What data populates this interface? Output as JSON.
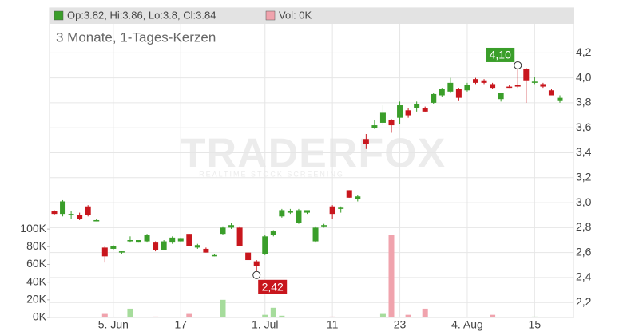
{
  "chart_data": {
    "type": "candlestick",
    "title": "3 Monate, 1-Tages-Kerzen",
    "legend_price": "Op:3.82, Hi:3.86, Lo:3.8, Cl:3.84",
    "legend_volume": "Vol: 0K",
    "watermark": "TRADERFOX",
    "watermark_sub": "REALTIME STOCK SCREENING",
    "categories": [
      null,
      null,
      null,
      null,
      null,
      null,
      null,
      "5. Jun",
      null,
      null,
      null,
      null,
      null,
      null,
      null,
      "17",
      null,
      null,
      null,
      null,
      null,
      null,
      null,
      null,
      null,
      "1. Jul",
      null,
      null,
      null,
      null,
      null,
      null,
      null,
      "11",
      null,
      null,
      null,
      null,
      null,
      null,
      null,
      "23",
      null,
      null,
      null,
      null,
      null,
      null,
      null,
      "4. Aug",
      null,
      null,
      null,
      null,
      null,
      null,
      null,
      "15",
      null,
      null,
      null
    ],
    "open": [
      2.93,
      2.91,
      2.9,
      2.9,
      2.97,
      2.85,
      2.64,
      2.63,
      2.6,
      2.69,
      2.68,
      2.69,
      2.68,
      2.62,
      2.68,
      2.69,
      2.75,
      2.64,
      2.63,
      2.57,
      2.75,
      2.8,
      2.8,
      2.6,
      2.53,
      2.59,
      2.74,
      2.89,
      2.92,
      2.84,
      2.92,
      2.69,
      2.81,
      2.97,
      2.95,
      3.1,
      3.03,
      3.51,
      3.6,
      3.64,
      3.66,
      3.68,
      3.74,
      3.76,
      3.76,
      3.8,
      3.86,
      3.89,
      3.91,
      3.9,
      3.99,
      3.98,
      3.95,
      3.83,
      3.93,
      3.94,
      4.07,
      3.96,
      3.95,
      3.9,
      3.82
    ],
    "high": [
      2.94,
      3.02,
      2.93,
      2.92,
      2.98,
      2.87,
      2.65,
      2.66,
      2.61,
      2.73,
      2.7,
      2.75,
      2.69,
      2.7,
      2.73,
      2.72,
      2.75,
      2.67,
      2.64,
      2.59,
      2.81,
      2.84,
      2.81,
      2.6,
      2.54,
      2.74,
      2.78,
      2.95,
      2.95,
      2.95,
      2.94,
      2.81,
      2.83,
      2.98,
      2.97,
      3.1,
      3.06,
      3.55,
      3.66,
      3.78,
      3.67,
      3.81,
      3.76,
      3.81,
      3.77,
      3.88,
      3.92,
      4.0,
      3.92,
      3.96,
      4.0,
      3.99,
      3.96,
      3.88,
      3.94,
      4.1,
      4.08,
      4.01,
      3.96,
      3.91,
      3.86
    ],
    "low": [
      2.9,
      2.89,
      2.87,
      2.86,
      2.89,
      2.85,
      2.52,
      2.62,
      2.59,
      2.68,
      2.68,
      2.68,
      2.61,
      2.62,
      2.67,
      2.68,
      2.65,
      2.63,
      2.6,
      2.57,
      2.74,
      2.79,
      2.65,
      2.54,
      2.42,
      2.58,
      2.73,
      2.88,
      2.91,
      2.83,
      2.91,
      2.68,
      2.8,
      2.87,
      2.92,
      3.04,
      3.01,
      3.43,
      3.59,
      3.62,
      3.56,
      3.63,
      3.68,
      3.73,
      3.73,
      3.79,
      3.85,
      3.88,
      3.82,
      3.89,
      3.95,
      3.95,
      3.91,
      3.81,
      3.92,
      3.92,
      3.8,
      3.95,
      3.92,
      3.86,
      3.8
    ],
    "close": [
      2.91,
      3.01,
      2.91,
      2.87,
      2.9,
      2.86,
      2.57,
      2.65,
      2.61,
      2.7,
      2.7,
      2.74,
      2.62,
      2.69,
      2.72,
      2.71,
      2.65,
      2.66,
      2.6,
      2.58,
      2.8,
      2.82,
      2.65,
      2.54,
      2.49,
      2.73,
      2.77,
      2.94,
      2.93,
      2.94,
      2.94,
      2.8,
      2.82,
      2.91,
      2.96,
      3.04,
      3.05,
      3.47,
      3.62,
      3.72,
      3.62,
      3.78,
      3.7,
      3.79,
      3.73,
      3.87,
      3.91,
      3.96,
      3.84,
      3.94,
      3.96,
      3.96,
      3.92,
      3.88,
      3.92,
      3.93,
      3.98,
      3.97,
      3.93,
      3.86,
      3.84
    ],
    "volume": [
      0,
      0,
      0,
      0,
      0,
      0,
      4000,
      0,
      0,
      10000,
      0,
      0,
      1000,
      0,
      0,
      0,
      4000,
      0,
      0,
      0,
      20000,
      0,
      0,
      0,
      0,
      3000,
      11000,
      2000,
      0,
      0,
      0,
      0,
      0,
      1000,
      0,
      0,
      0,
      0,
      0,
      4000,
      93000,
      0,
      3000,
      0,
      10000,
      0,
      0,
      0,
      0,
      0,
      0,
      0,
      3000,
      0,
      0,
      0,
      0,
      1000,
      0,
      0,
      0
    ],
    "annotations": [
      {
        "value": 4.1,
        "label": "4,10"
      },
      {
        "value": 2.42,
        "label": "2,42"
      }
    ],
    "up_color": "#3a9e2a",
    "down_color": "#c8161d",
    "volume_up_color": "#a6dc9c",
    "volume_down_color": "#f0a3ad",
    "ylim": [
      2.08,
      4.56
    ],
    "yticks": [
      {
        "value": 2.2,
        "label": "2,2"
      },
      {
        "value": 2.4,
        "label": "2,4"
      },
      {
        "value": 2.6,
        "label": "2,6"
      },
      {
        "value": 2.8,
        "label": "2,8"
      },
      {
        "value": 3.0,
        "label": "3,0"
      },
      {
        "value": 3.2,
        "label": "3,2"
      },
      {
        "value": 3.4,
        "label": "3,4"
      },
      {
        "value": 3.6,
        "label": "3,6"
      },
      {
        "value": 3.8,
        "label": "3,8"
      },
      {
        "value": 4.0,
        "label": "4,0"
      },
      {
        "value": 4.2,
        "label": "4,2"
      }
    ],
    "vlim": [
      0,
      350000
    ],
    "vticks": [
      {
        "value": 0,
        "label": "0K"
      },
      {
        "value": 20000,
        "label": "20K"
      },
      {
        "value": 40000,
        "label": "40K"
      },
      {
        "value": 60000,
        "label": "60K"
      },
      {
        "value": 80000,
        "label": "80K"
      },
      {
        "value": 100000,
        "label": "100K"
      }
    ],
    "grid": true
  }
}
